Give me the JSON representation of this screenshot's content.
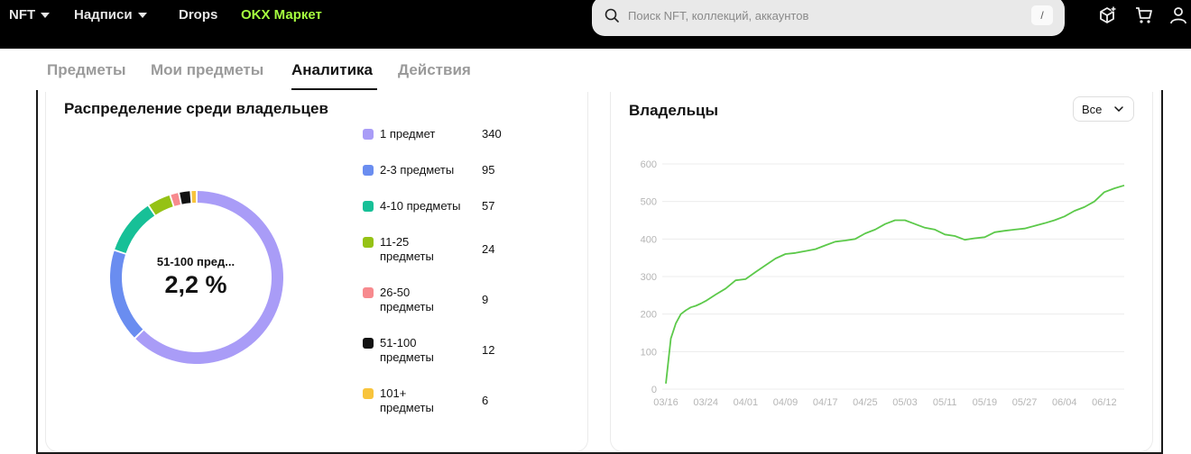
{
  "nav": {
    "items": [
      {
        "label": "NFT",
        "has_caret": true
      },
      {
        "label": "Надписи",
        "has_caret": true
      },
      {
        "label": "Drops",
        "has_caret": false
      },
      {
        "label": "OKX Маркет",
        "has_caret": false,
        "accent": "#a6ff3f"
      }
    ],
    "search_placeholder": "Поиск NFT, коллекций, аккаунтов",
    "search_shortcut": "/",
    "icons": [
      "cube-plus-icon",
      "cart-icon",
      "user-icon"
    ]
  },
  "tabs": [
    {
      "label": "Предметы",
      "active": false
    },
    {
      "label": "Мои предметы",
      "active": false
    },
    {
      "label": "Аналитика",
      "active": true
    },
    {
      "label": "Действия",
      "active": false
    }
  ],
  "distribution": {
    "title": "Распределение среди владельцев",
    "center_label": "51-100 пред...",
    "center_value": "2,2 %",
    "legend": [
      {
        "label": "1 предмет",
        "count": "340",
        "color": "#a99cf7"
      },
      {
        "label": "2-3 предметы",
        "count": "95",
        "color": "#6a8df0"
      },
      {
        "label": "4-10 предметы",
        "count": "57",
        "color": "#17c097"
      },
      {
        "label": "11-25 предметы",
        "count": "24",
        "color": "#95c215"
      },
      {
        "label": "26-50 предметы",
        "count": "9",
        "color": "#f78a8e"
      },
      {
        "label": "51-100 предметы",
        "count": "12",
        "color": "#121212"
      },
      {
        "label": "101+ предметы",
        "count": "6",
        "color": "#f8c43c"
      }
    ]
  },
  "owners": {
    "title": "Владельцы",
    "filter_value": "Все"
  },
  "chart_data": {
    "type": "line",
    "title": "Владельцы",
    "color": "#5cc94a",
    "ylim": [
      0,
      600
    ],
    "yticks": [
      0,
      100,
      200,
      300,
      400,
      500,
      600
    ],
    "xtick_labels": [
      "03/16",
      "03/24",
      "04/01",
      "04/09",
      "04/17",
      "04/25",
      "05/03",
      "05/11",
      "05/19",
      "05/27",
      "06/04",
      "06/12"
    ],
    "grid": true,
    "series": [
      {
        "x": [
          "03/16",
          "03/17",
          "03/18",
          "03/19",
          "03/20",
          "03/21",
          "03/22",
          "03/23",
          "03/24",
          "03/26",
          "03/28",
          "03/30",
          "04/01",
          "04/03",
          "04/05",
          "04/07",
          "04/09",
          "04/11",
          "04/13",
          "04/15",
          "04/17",
          "04/19",
          "04/21",
          "04/23",
          "04/25",
          "04/27",
          "04/29",
          "05/01",
          "05/03",
          "05/05",
          "05/07",
          "05/09",
          "05/11",
          "05/13",
          "05/15",
          "05/17",
          "05/19",
          "05/21",
          "05/23",
          "05/25",
          "05/27",
          "05/29",
          "05/31",
          "06/02",
          "06/04",
          "06/06",
          "06/08",
          "06/10",
          "06/12",
          "06/14",
          "06/16"
        ],
        "y": [
          15,
          135,
          175,
          200,
          210,
          218,
          222,
          228,
          235,
          252,
          268,
          290,
          293,
          312,
          330,
          348,
          360,
          363,
          368,
          373,
          383,
          393,
          396,
          400,
          415,
          425,
          440,
          450,
          450,
          440,
          430,
          425,
          412,
          408,
          398,
          402,
          405,
          418,
          422,
          425,
          428,
          435,
          442,
          450,
          460,
          475,
          485,
          500,
          525,
          535,
          543
        ]
      }
    ]
  }
}
